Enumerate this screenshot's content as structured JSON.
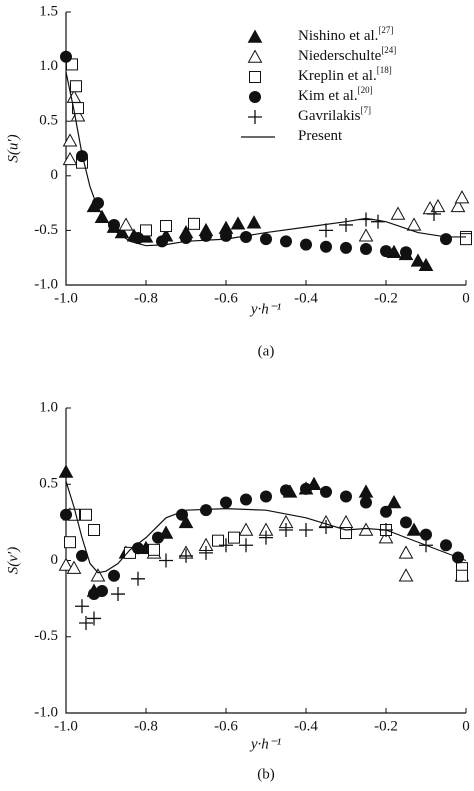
{
  "chart_data": [
    {
      "type": "scatter",
      "ylabel": "S(u′)",
      "xlabel": "y·h⁻¹",
      "caption": "(a)",
      "legend": "upper right",
      "xlim": [
        -1,
        0
      ],
      "xticks": [
        {
          "value": -1,
          "label": "-1.0"
        },
        -0.8,
        -0.6,
        -0.4,
        -0.2,
        0
      ],
      "ylim": [
        -1,
        1.5
      ],
      "yticks": [
        {
          "value": -1,
          "label": "-1.0"
        },
        -0.5,
        0,
        0.5,
        {
          "value": 1,
          "label": "1.0"
        },
        1.5
      ],
      "series": [
        {
          "name": "Nishino et al.",
          "ref": "[27]",
          "marker": "triangle-filled",
          "color": "#111",
          "x": [
            -0.93,
            -0.91,
            -0.88,
            -0.86,
            -0.83,
            -0.8,
            -0.75,
            -0.7,
            -0.65,
            -0.6,
            -0.57,
            -0.53,
            -0.18,
            -0.15,
            -0.12,
            -0.1
          ],
          "values": [
            -0.28,
            -0.38,
            -0.47,
            -0.52,
            -0.55,
            -0.56,
            -0.55,
            -0.52,
            -0.5,
            -0.48,
            -0.44,
            -0.43,
            -0.7,
            -0.72,
            -0.78,
            -0.82
          ]
        },
        {
          "name": "Niederschulte",
          "ref": "[24]",
          "marker": "triangle-open",
          "color": "#111",
          "x": [
            -0.99,
            -0.99,
            -0.98,
            -0.97,
            -0.85,
            -0.25,
            -0.17,
            -0.13,
            -0.09,
            -0.07,
            -0.02,
            -0.01
          ],
          "values": [
            0.15,
            0.32,
            0.72,
            0.55,
            -0.45,
            -0.55,
            -0.35,
            -0.45,
            -0.3,
            -0.28,
            -0.28,
            -0.2
          ]
        },
        {
          "name": "Kreplin et al.",
          "ref": "[18]",
          "marker": "square-open",
          "color": "#111",
          "x": [
            -0.985,
            -0.975,
            -0.97,
            -0.96,
            -0.8,
            -0.75,
            -0.68,
            0,
            0
          ],
          "values": [
            1.02,
            0.82,
            0.62,
            0.12,
            -0.5,
            -0.46,
            -0.44,
            -0.56,
            -0.58
          ]
        },
        {
          "name": "Kim et al.",
          "ref": "[20]",
          "marker": "circle-filled",
          "color": "#111",
          "x": [
            -1,
            -0.96,
            -0.92,
            -0.88,
            -0.82,
            -0.76,
            -0.7,
            -0.65,
            -0.6,
            -0.55,
            -0.5,
            -0.45,
            -0.4,
            -0.35,
            -0.3,
            -0.25,
            -0.2,
            -0.15,
            -0.05
          ],
          "values": [
            1.09,
            0.18,
            -0.25,
            -0.45,
            -0.57,
            -0.6,
            -0.57,
            -0.55,
            -0.55,
            -0.56,
            -0.58,
            -0.6,
            -0.63,
            -0.65,
            -0.66,
            -0.67,
            -0.69,
            -0.7,
            -0.58
          ]
        },
        {
          "name": "Gavrilakis",
          "ref": "[7]",
          "marker": "plus",
          "color": "#111",
          "x": [
            -0.35,
            -0.3,
            -0.25,
            -0.22,
            -0.08
          ],
          "values": [
            -0.5,
            -0.45,
            -0.4,
            -0.42,
            -0.35
          ]
        },
        {
          "name": "Present",
          "marker": "line",
          "color": "#111",
          "x": [
            -1,
            -0.98,
            -0.96,
            -0.94,
            -0.92,
            -0.88,
            -0.84,
            -0.8,
            -0.75,
            -0.7,
            -0.6,
            -0.5,
            -0.4,
            -0.3,
            -0.25,
            -0.2,
            -0.12,
            -0.05,
            0
          ],
          "values": [
            0.95,
            0.6,
            0.2,
            -0.1,
            -0.3,
            -0.5,
            -0.6,
            -0.64,
            -0.63,
            -0.6,
            -0.58,
            -0.52,
            -0.47,
            -0.42,
            -0.39,
            -0.42,
            -0.52,
            -0.56,
            -0.56
          ]
        }
      ]
    },
    {
      "type": "scatter",
      "ylabel": "S(v′)",
      "xlabel": "y·h⁻¹",
      "caption": "(b)",
      "xlim": [
        -1,
        0
      ],
      "xticks": [
        {
          "value": -1,
          "label": "-1.0"
        },
        -0.8,
        -0.6,
        -0.4,
        -0.2,
        0
      ],
      "ylim": [
        -1,
        1
      ],
      "yticks": [
        {
          "value": -1,
          "label": "-1.0"
        },
        -0.5,
        0,
        0.5,
        {
          "value": 1,
          "label": "1.0"
        }
      ],
      "series": [
        {
          "marker": "triangle-filled",
          "color": "#111",
          "x": [
            -1,
            -0.99,
            -0.93,
            -0.85,
            -0.8,
            -0.75,
            -0.7,
            -0.44,
            -0.4,
            -0.38,
            -0.25,
            -0.18,
            -0.13
          ],
          "values": [
            0.58,
            0.3,
            -0.2,
            0.05,
            0.08,
            0.18,
            0.25,
            0.45,
            0.47,
            0.5,
            0.45,
            0.38,
            0.2
          ]
        },
        {
          "marker": "triangle-open",
          "color": "#111",
          "x": [
            -1,
            -0.98,
            -0.92,
            -0.78,
            -0.7,
            -0.65,
            -0.55,
            -0.5,
            -0.45,
            -0.35,
            -0.3,
            -0.25,
            -0.2,
            -0.15,
            -0.15,
            -0.01
          ],
          "values": [
            -0.03,
            -0.05,
            -0.1,
            0.05,
            0.05,
            0.1,
            0.2,
            0.2,
            0.25,
            0.25,
            0.25,
            0.2,
            0.15,
            0.05,
            -0.1,
            -0.1
          ]
        },
        {
          "marker": "square-open",
          "color": "#111",
          "x": [
            -0.99,
            -0.98,
            -0.95,
            -0.93,
            -0.84,
            -0.78,
            -0.62,
            -0.58,
            -0.3,
            -0.2,
            -0.01,
            -0.01
          ],
          "values": [
            0.12,
            0.3,
            0.3,
            0.2,
            0.05,
            0.07,
            0.13,
            0.15,
            0.18,
            0.2,
            -0.05,
            -0.1
          ]
        },
        {
          "marker": "circle-filled",
          "color": "#111",
          "x": [
            -1,
            -0.96,
            -0.93,
            -0.91,
            -0.88,
            -0.82,
            -0.77,
            -0.71,
            -0.65,
            -0.6,
            -0.55,
            -0.5,
            -0.45,
            -0.4,
            -0.35,
            -0.3,
            -0.25,
            -0.2,
            -0.15,
            -0.1,
            -0.05,
            -0.02
          ],
          "values": [
            0.3,
            0.03,
            -0.22,
            -0.2,
            -0.1,
            0.08,
            0.15,
            0.3,
            0.33,
            0.38,
            0.4,
            0.42,
            0.46,
            0.47,
            0.45,
            0.42,
            0.38,
            0.32,
            0.25,
            0.17,
            0.1,
            0.02
          ]
        },
        {
          "marker": "plus",
          "color": "#111",
          "x": [
            -0.96,
            -0.95,
            -0.93,
            -0.87,
            -0.82,
            -0.75,
            -0.7,
            -0.65,
            -0.6,
            -0.55,
            -0.5,
            -0.45,
            -0.4,
            -0.35,
            -0.2,
            -0.1
          ],
          "values": [
            -0.3,
            -0.41,
            -0.38,
            -0.22,
            -0.12,
            0,
            0.03,
            0.05,
            0.1,
            0.1,
            0.15,
            0.2,
            0.2,
            0.22,
            0.2,
            0.1
          ]
        },
        {
          "marker": "line",
          "color": "#111",
          "x": [
            -1,
            -0.98,
            -0.96,
            -0.94,
            -0.92,
            -0.9,
            -0.87,
            -0.84,
            -0.8,
            -0.75,
            -0.7,
            -0.6,
            -0.5,
            -0.4,
            -0.35,
            -0.3,
            -0.25,
            -0.2,
            -0.15,
            -0.1,
            -0.05,
            0
          ],
          "values": [
            0.52,
            0.35,
            0.15,
            -0.02,
            -0.08,
            -0.07,
            -0.02,
            0.07,
            0.15,
            0.28,
            0.33,
            0.34,
            0.33,
            0.28,
            0.24,
            0.2,
            0.21,
            0.2,
            0.15,
            0.1,
            0.05,
            0
          ]
        }
      ]
    }
  ]
}
